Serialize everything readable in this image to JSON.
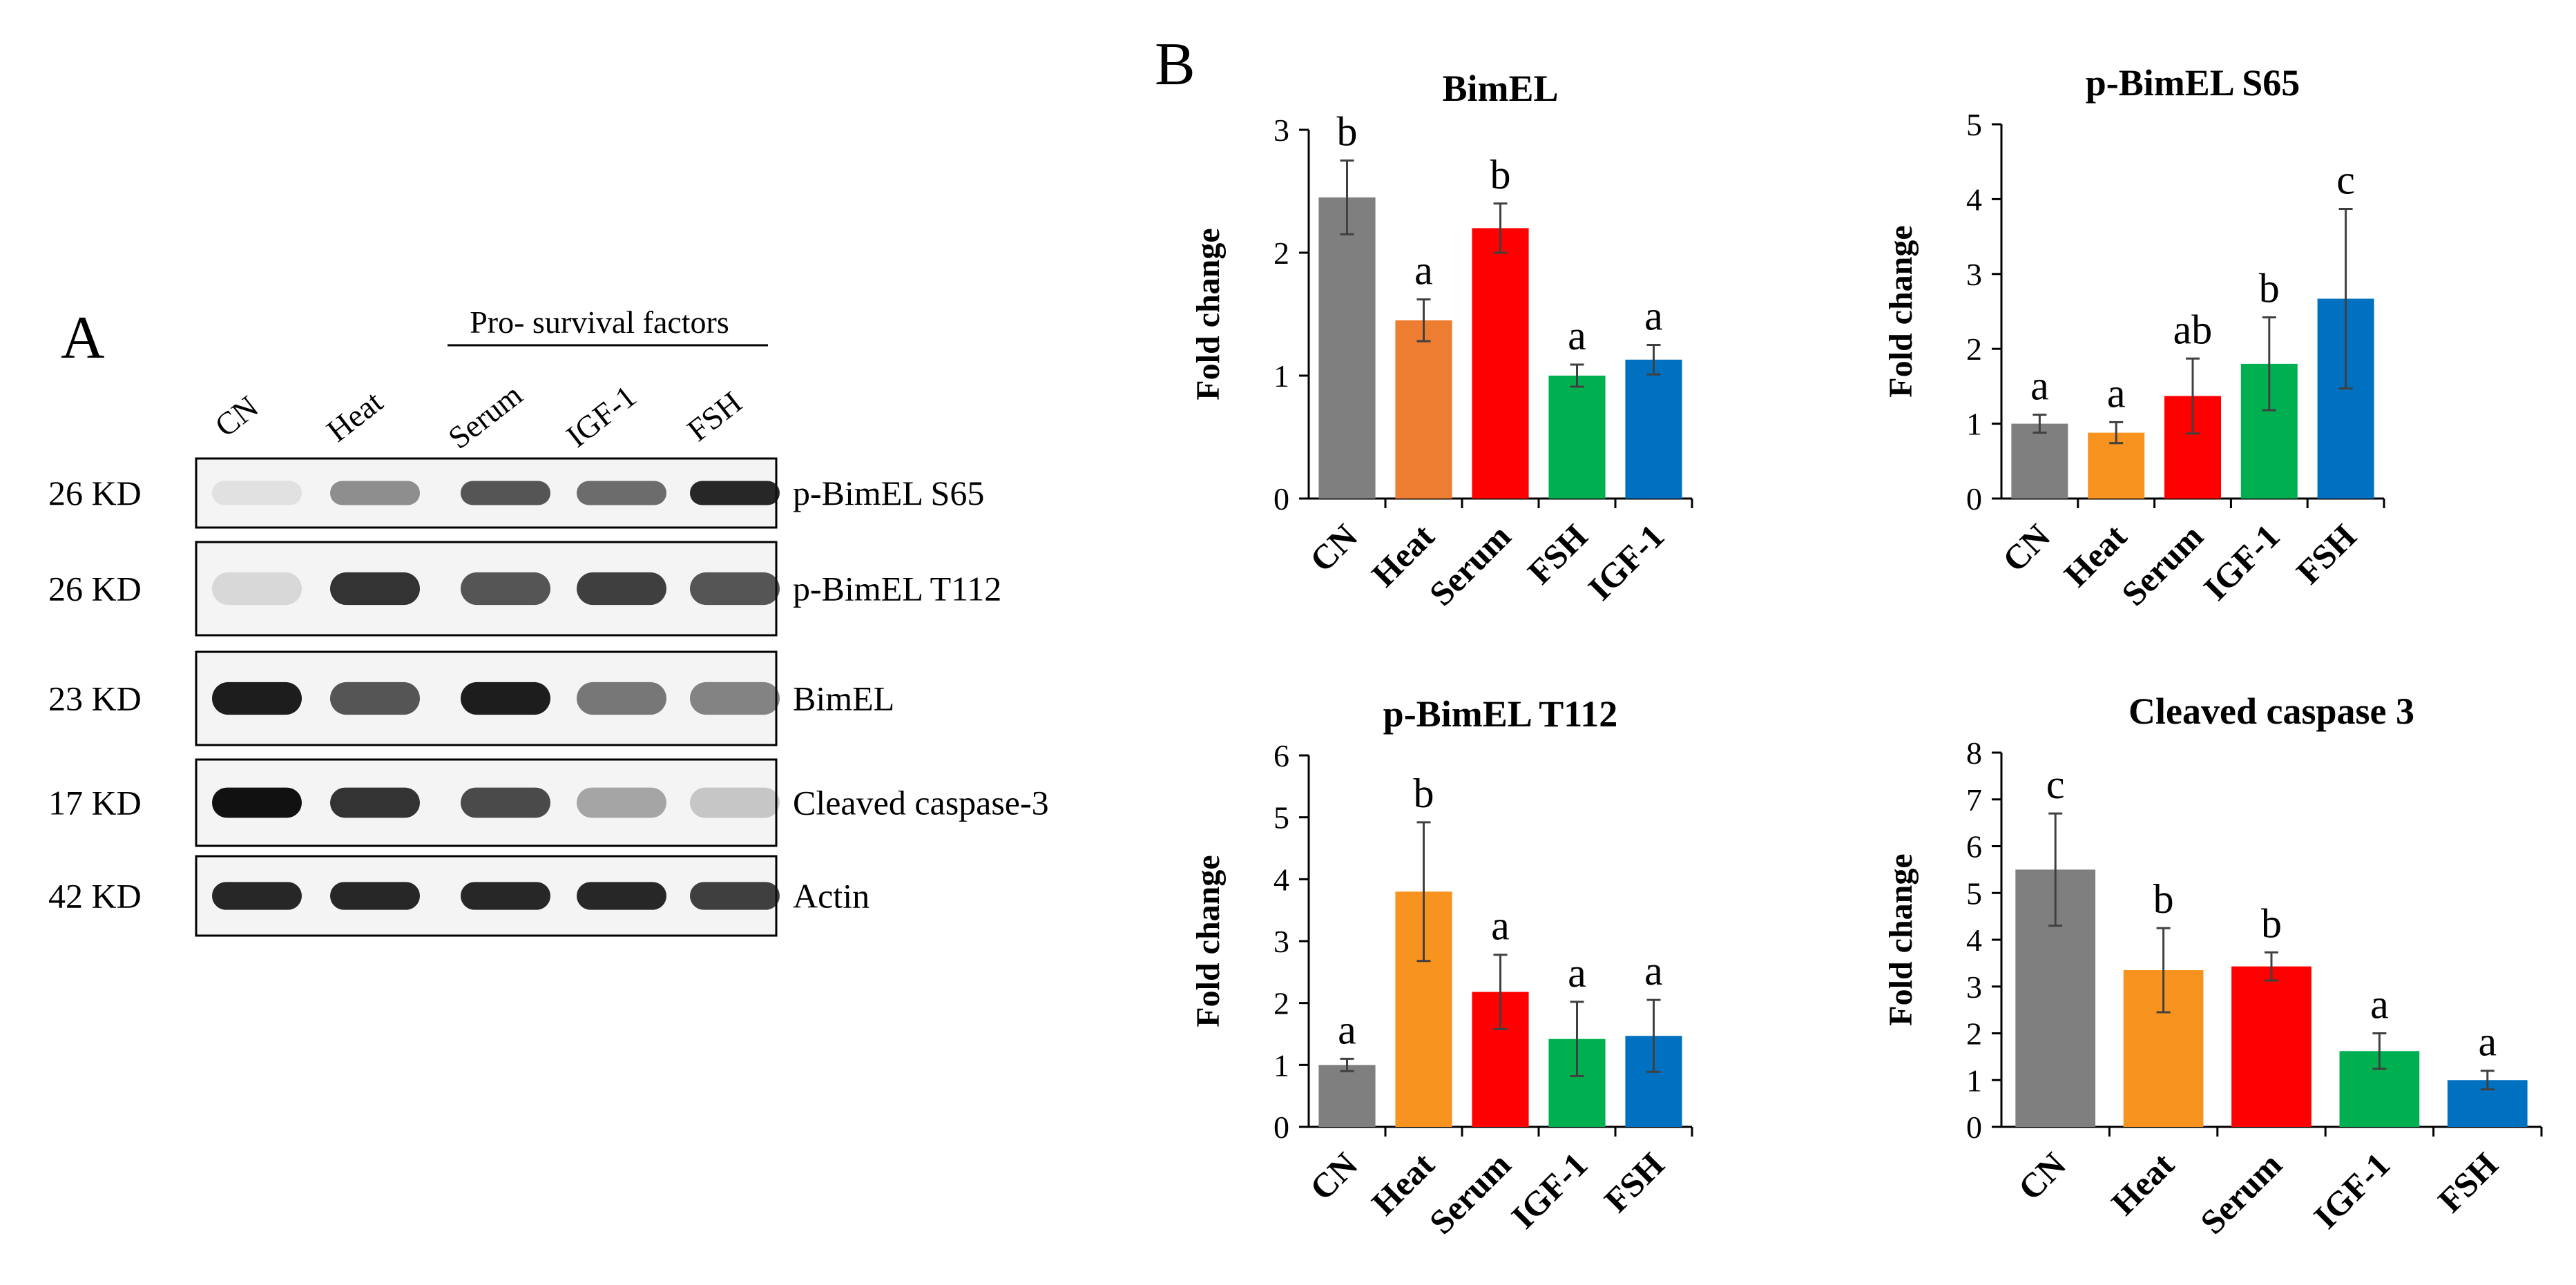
{
  "panel_a": {
    "letter": "A",
    "group_label": "Pro- survival factors",
    "lanes": [
      "CN",
      "Heat",
      "Serum",
      "IGF-1",
      "FSH"
    ],
    "blots": [
      {
        "size": "26 KD",
        "label": "p-BimEL S65",
        "intensity": [
          0.08,
          0.45,
          0.7,
          0.6,
          0.9
        ]
      },
      {
        "size": "26 KD",
        "label": "p-BimEL T112",
        "intensity": [
          0.12,
          0.85,
          0.7,
          0.8,
          0.7
        ]
      },
      {
        "size": "23 KD",
        "label": "BimEL",
        "intensity": [
          0.95,
          0.7,
          0.95,
          0.55,
          0.5
        ]
      },
      {
        "size": "17 KD",
        "label": "Cleaved caspase-3",
        "intensity": [
          1.0,
          0.85,
          0.75,
          0.35,
          0.2
        ]
      },
      {
        "size": "42 KD",
        "label": "Actin",
        "intensity": [
          0.9,
          0.9,
          0.9,
          0.9,
          0.8
        ]
      }
    ]
  },
  "panel_b": {
    "letter": "B"
  },
  "chart_data": [
    {
      "type": "bar",
      "title": "BimEL",
      "ylabel": "Fold change",
      "xlabel": "",
      "ylim": [
        0,
        3
      ],
      "yticks": [
        "0",
        "1",
        "2",
        "3"
      ],
      "categories": [
        "CN",
        "Heat",
        "Serum",
        "FSH",
        "IGF-1"
      ],
      "values": [
        2.45,
        1.45,
        2.2,
        1.0,
        1.13
      ],
      "errors": [
        0.3,
        0.17,
        0.2,
        0.09,
        0.12
      ],
      "letters": [
        "b",
        "a",
        "b",
        "a",
        "a"
      ],
      "colors": [
        "#7f7f7f",
        "#ed7d31",
        "#ff0000",
        "#00b050",
        "#0070c0"
      ],
      "grid": false
    },
    {
      "type": "bar",
      "title": "p-BimEL S65",
      "ylabel": "Fold change",
      "xlabel": "",
      "ylim": [
        0,
        5
      ],
      "yticks": [
        "0",
        "1",
        "2",
        "3",
        "4",
        "5"
      ],
      "categories": [
        "CN",
        "Heat",
        "Serum",
        "IGF-1",
        "FSH"
      ],
      "values": [
        1.0,
        0.88,
        1.37,
        1.8,
        2.67
      ],
      "errors": [
        0.12,
        0.14,
        0.5,
        0.62,
        1.2
      ],
      "letters": [
        "a",
        "a",
        "ab",
        "b",
        "c"
      ],
      "colors": [
        "#7f7f7f",
        "#f7931e",
        "#ff0000",
        "#00b050",
        "#0070c0"
      ],
      "grid": false
    },
    {
      "type": "bar",
      "title": "p-BimEL T112",
      "ylabel": "Fold change",
      "xlabel": "",
      "ylim": [
        0,
        6
      ],
      "yticks": [
        "0",
        "1",
        "2",
        "3",
        "4",
        "5",
        "6"
      ],
      "categories": [
        "CN",
        "Heat",
        "Serum",
        "IGF-1",
        "FSH"
      ],
      "values": [
        1.0,
        3.8,
        2.18,
        1.42,
        1.47
      ],
      "errors": [
        0.1,
        1.12,
        0.6,
        0.6,
        0.58
      ],
      "letters": [
        "a",
        "b",
        "a",
        "a",
        "a"
      ],
      "colors": [
        "#7f7f7f",
        "#f7931e",
        "#ff0000",
        "#00b050",
        "#0070c0"
      ],
      "grid": false
    },
    {
      "type": "bar",
      "title": "Cleaved caspase 3",
      "ylabel": "Fold change",
      "xlabel": "",
      "ylim": [
        0,
        8
      ],
      "yticks": [
        "0",
        "1",
        "2",
        "3",
        "4",
        "5",
        "6",
        "7",
        "8"
      ],
      "categories": [
        "CN",
        "Heat",
        "Serum",
        "IGF-1",
        "FSH"
      ],
      "values": [
        5.5,
        3.35,
        3.43,
        1.62,
        1.0
      ],
      "errors": [
        1.2,
        0.9,
        0.3,
        0.38,
        0.2
      ],
      "letters": [
        "c",
        "b",
        "b",
        "a",
        "a"
      ],
      "colors": [
        "#7f7f7f",
        "#f7931e",
        "#ff0000",
        "#00b050",
        "#0070c0"
      ],
      "grid": false
    }
  ]
}
